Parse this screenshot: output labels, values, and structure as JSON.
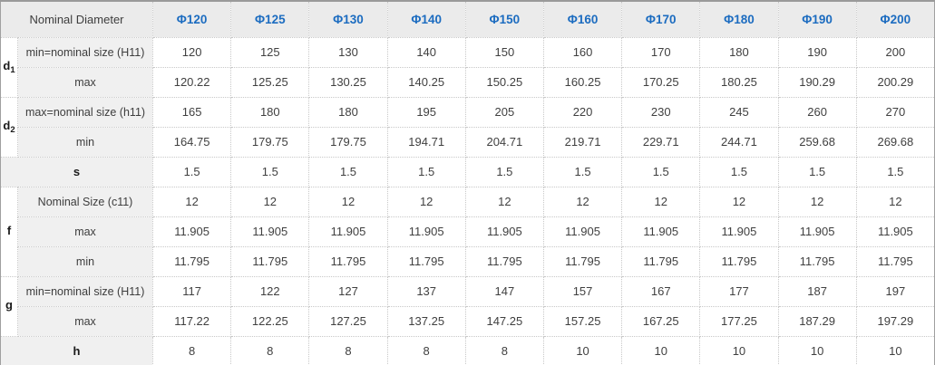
{
  "table": {
    "corner_label": "Nominal Diameter",
    "diameters": [
      "Φ120",
      "Φ125",
      "Φ130",
      "Φ140",
      "Φ150",
      "Φ160",
      "Φ170",
      "Φ180",
      "Φ190",
      "Φ200"
    ],
    "rows": [
      {
        "group": "d",
        "group_sub": "1",
        "group_rowspan": 2,
        "label": "min=nominal size (H11)",
        "values": [
          "120",
          "125",
          "130",
          "140",
          "150",
          "160",
          "170",
          "180",
          "190",
          "200"
        ]
      },
      {
        "label": "max",
        "values": [
          "120.22",
          "125.25",
          "130.25",
          "140.25",
          "150.25",
          "160.25",
          "170.25",
          "180.25",
          "190.29",
          "200.29"
        ]
      },
      {
        "group": "d",
        "group_sub": "2",
        "group_rowspan": 2,
        "label": "max=nominal size (h11)",
        "values": [
          "165",
          "180",
          "180",
          "195",
          "205",
          "220",
          "230",
          "245",
          "260",
          "270"
        ]
      },
      {
        "label": "min",
        "values": [
          "164.75",
          "179.75",
          "179.75",
          "194.71",
          "204.71",
          "219.71",
          "229.71",
          "244.71",
          "259.68",
          "269.68"
        ]
      },
      {
        "merged_label": "s",
        "values": [
          "1.5",
          "1.5",
          "1.5",
          "1.5",
          "1.5",
          "1.5",
          "1.5",
          "1.5",
          "1.5",
          "1.5"
        ]
      },
      {
        "group": "f",
        "group_sub": "",
        "group_rowspan": 3,
        "label": "Nominal Size (c11)",
        "values": [
          "12",
          "12",
          "12",
          "12",
          "12",
          "12",
          "12",
          "12",
          "12",
          "12"
        ]
      },
      {
        "label": "max",
        "values": [
          "11.905",
          "11.905",
          "11.905",
          "11.905",
          "11.905",
          "11.905",
          "11.905",
          "11.905",
          "11.905",
          "11.905"
        ]
      },
      {
        "label": "min",
        "values": [
          "11.795",
          "11.795",
          "11.795",
          "11.795",
          "11.795",
          "11.795",
          "11.795",
          "11.795",
          "11.795",
          "11.795"
        ]
      },
      {
        "group": "g",
        "group_sub": "",
        "group_rowspan": 2,
        "label": "min=nominal size (H11)",
        "values": [
          "117",
          "122",
          "127",
          "137",
          "147",
          "157",
          "167",
          "177",
          "187",
          "197"
        ]
      },
      {
        "label": "max",
        "values": [
          "117.22",
          "122.25",
          "127.25",
          "137.25",
          "147.25",
          "157.25",
          "167.25",
          "177.25",
          "187.29",
          "197.29"
        ]
      },
      {
        "merged_label": "h",
        "values": [
          "8",
          "8",
          "8",
          "8",
          "8",
          "10",
          "10",
          "10",
          "10",
          "10"
        ]
      }
    ]
  },
  "colors": {
    "header_bg": "#ebebeb",
    "label_bg": "#f0f0f0",
    "diameter_text": "#1c6cc0",
    "body_text": "#404040",
    "border_inner": "#c8c8c8",
    "border_outer": "#9f9f9f"
  }
}
